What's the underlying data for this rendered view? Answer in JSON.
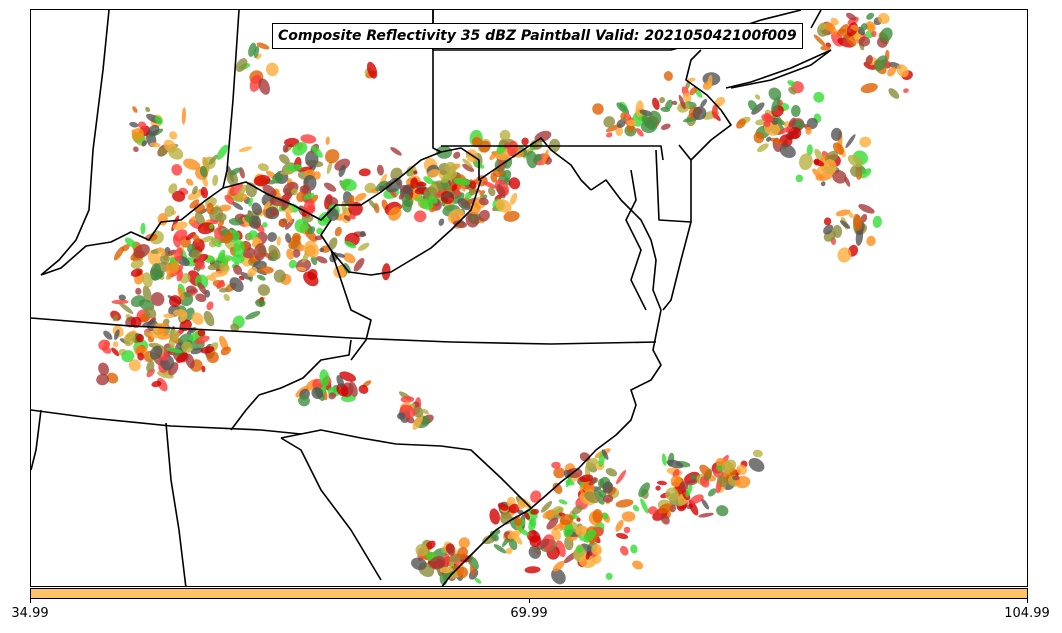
{
  "title": "Composite Reflectivity 35 dBZ Paintball Valid: 202105042100f009",
  "colorbar": {
    "color": "#ffc466",
    "ticks": [
      "34.99",
      "69.99",
      "104.99"
    ]
  },
  "paintball_colors": [
    "#ff3b3b",
    "#d40000",
    "#ff8c1a",
    "#e06000",
    "#ffad3b",
    "#33dd33",
    "#3f8f3f",
    "#8c8c3a",
    "#555555",
    "#a83a3a",
    "#b8b040"
  ]
}
